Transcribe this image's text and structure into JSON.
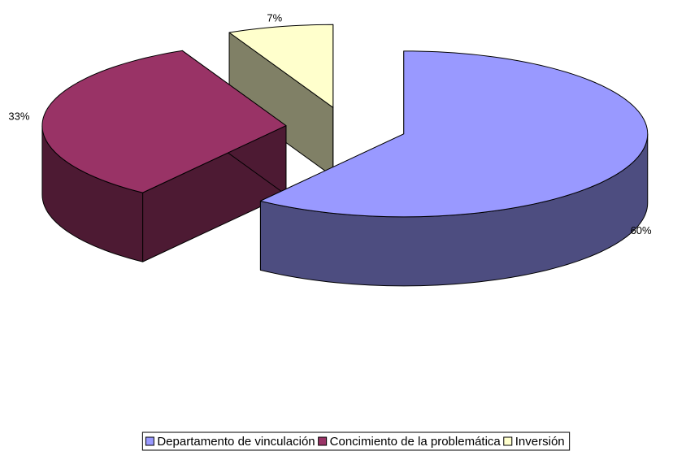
{
  "chart_data": {
    "type": "pie3d",
    "categories": [
      "Departamento de vinculación",
      "Concimiento de la problemática",
      "Inversión"
    ],
    "series": [
      {
        "values": [
          60,
          33,
          7
        ],
        "value_labels": [
          "60%",
          "33%",
          "7%"
        ],
        "colors": [
          "#9999ff",
          "#993366",
          "#ffffcc"
        ]
      }
    ],
    "legend": "bottom"
  }
}
